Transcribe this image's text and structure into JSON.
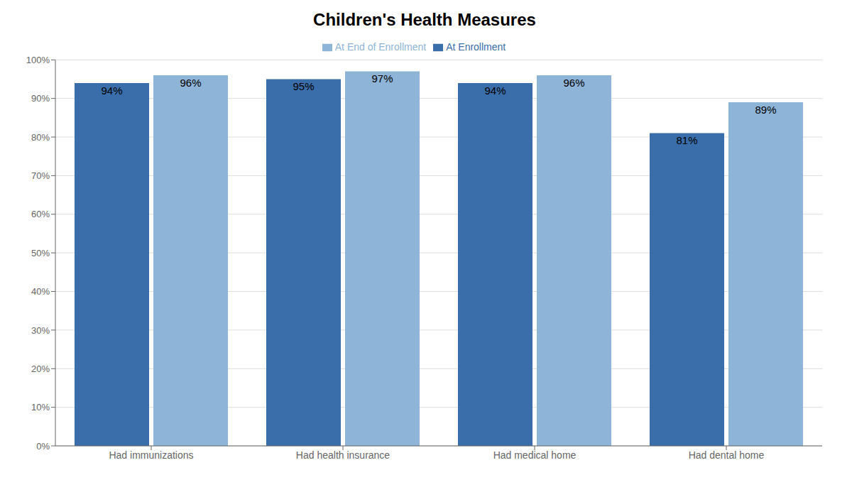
{
  "chart_data": {
    "type": "bar",
    "title": "Children's Health Measures",
    "categories": [
      "Had immunizations",
      "Had health insurance",
      "Had medical home",
      "Had dental home"
    ],
    "series": [
      {
        "name": "At Enrollment",
        "color": "#3A6EAA",
        "values": [
          0.94,
          0.95,
          0.94,
          0.81
        ],
        "value_labels": [
          "94%",
          "95%",
          "94%",
          "81%"
        ]
      },
      {
        "name": "At End of Enrollment",
        "color": "#8EB4D8",
        "values": [
          0.96,
          0.97,
          0.96,
          0.89
        ],
        "value_labels": [
          "96%",
          "97%",
          "96%",
          "89%"
        ]
      }
    ],
    "ylim": [
      0,
      1.0
    ],
    "yticks": [
      {
        "value": 0,
        "label": "0%"
      },
      {
        "value": 0.1,
        "label": "10%"
      },
      {
        "value": 0.2,
        "label": "20%"
      },
      {
        "value": 0.3,
        "label": "30%"
      },
      {
        "value": 0.4,
        "label": "40%"
      },
      {
        "value": 0.5,
        "label": "50%"
      },
      {
        "value": 0.6,
        "label": "60%"
      },
      {
        "value": 0.7,
        "label": "70%"
      },
      {
        "value": 0.8,
        "label": "80%"
      },
      {
        "value": 0.9,
        "label": "90%"
      },
      {
        "value": 1.0,
        "label": "100%"
      }
    ],
    "grid": true,
    "legend": "top",
    "data_labels": true
  }
}
